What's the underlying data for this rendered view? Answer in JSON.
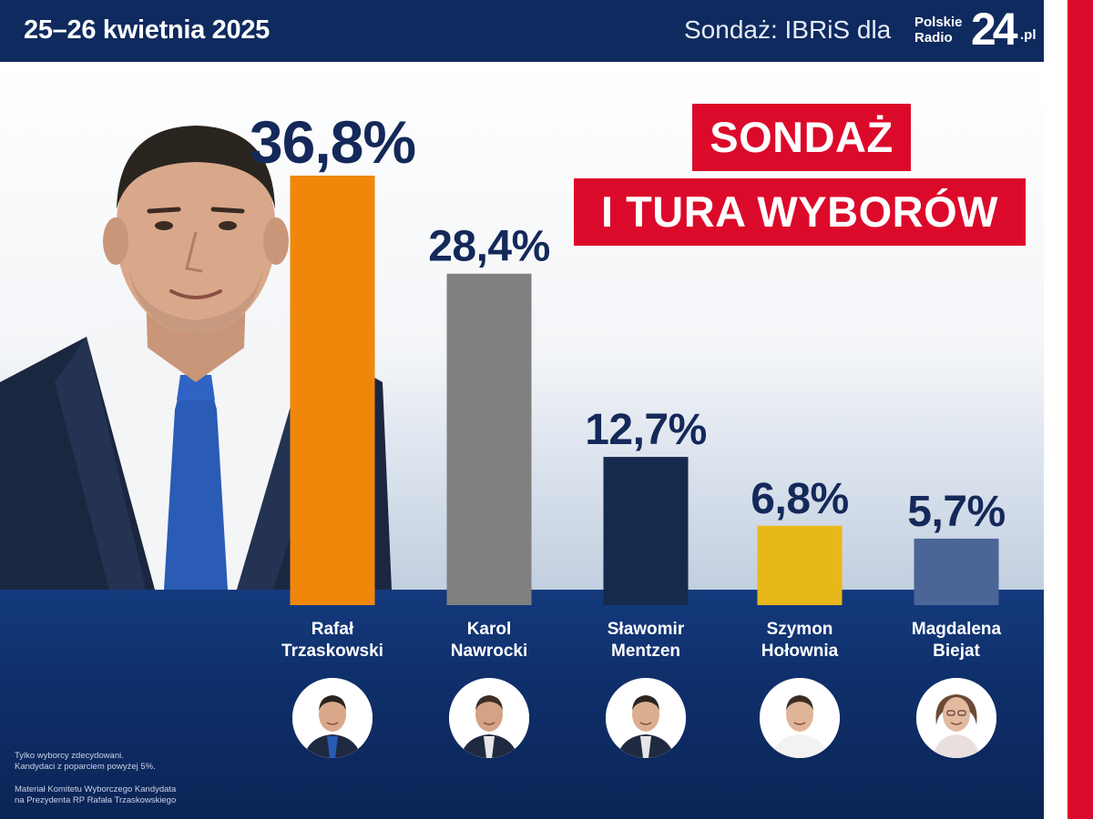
{
  "header": {
    "date": "25–26 kwietnia 2025",
    "source": "Sondaż: IBRiS dla",
    "logo_text_line1": "Polskie",
    "logo_text_line2": "Radio",
    "logo_number": "24",
    "logo_suffix": ".pl"
  },
  "title": {
    "line1": "SONDAŻ",
    "line2": "I TURA WYBORÓW"
  },
  "footnote": {
    "line1": "Tylko wyborcy zdecydowani.",
    "line2": "Kandydaci z poparciem powyżej 5%.",
    "line3": "Materiał Komitetu Wyborczego Kandydata",
    "line4": "na Prezydenta RP Rafała Trzaskowskiego"
  },
  "colors": {
    "header_bg": "#0f2a5e",
    "accent_red": "#dc0a2a",
    "bottom_bg": "#0f2f6a"
  },
  "chart_data": {
    "type": "bar",
    "categories": [
      "Rafał Trzaskowski",
      "Karol Nawrocki",
      "Sławomir Mentzen",
      "Szymon Hołownia",
      "Magdalena Biejat"
    ],
    "name_lines": [
      [
        "Rafał",
        "Trzaskowski"
      ],
      [
        "Karol",
        "Nawrocki"
      ],
      [
        "Sławomir",
        "Mentzen"
      ],
      [
        "Szymon",
        "Hołownia"
      ],
      [
        "Magdalena",
        "Biejat"
      ]
    ],
    "values": [
      36.8,
      28.4,
      12.7,
      6.8,
      5.7
    ],
    "value_labels": [
      "36,8%",
      "28,4%",
      "12,7%",
      "6,8%",
      "5,7%"
    ],
    "colors": [
      "#f0870a",
      "#808080",
      "#162a4e",
      "#e8b81a",
      "#4a6596"
    ],
    "title": "SONDAŻ I TURA WYBORÓW",
    "ylim": [
      0,
      36.8
    ]
  }
}
